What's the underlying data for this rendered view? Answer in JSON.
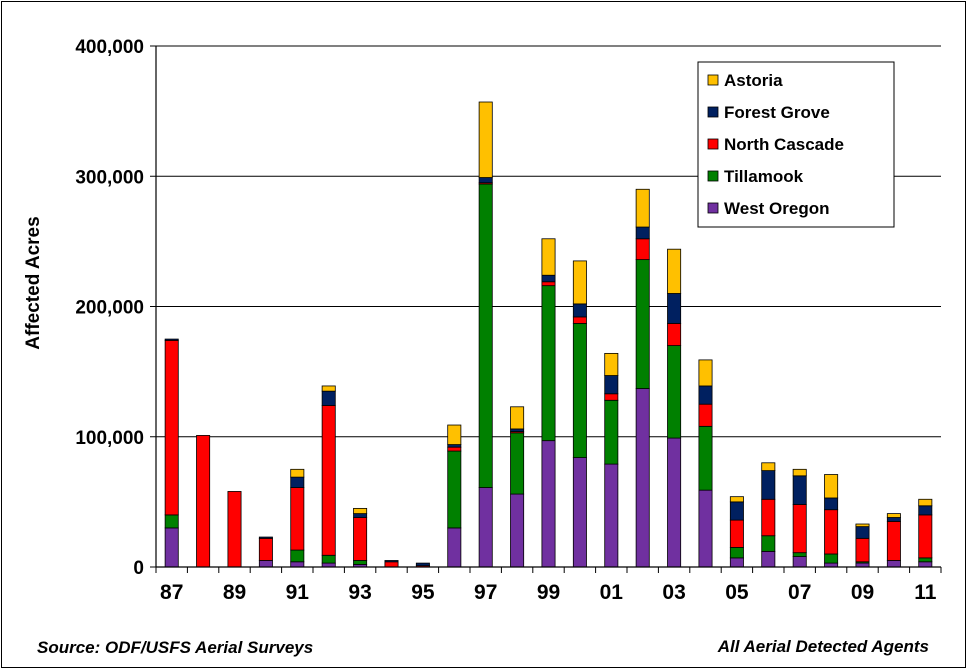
{
  "chart_data": {
    "type": "bar",
    "stacked": true,
    "ylabel": "Affected Acres",
    "ylim": [
      0,
      400000
    ],
    "yticks": [
      0,
      100000,
      200000,
      300000,
      400000
    ],
    "ytick_labels": [
      "0",
      "100,000",
      "200,000",
      "300,000",
      "400,000"
    ],
    "categories": [
      "87",
      "88",
      "89",
      "90",
      "91",
      "92",
      "93",
      "94",
      "95",
      "96",
      "97",
      "98",
      "99",
      "00",
      "01",
      "02",
      "03",
      "04",
      "05",
      "06",
      "07",
      "08",
      "09",
      "10",
      "11"
    ],
    "xtick_labels": [
      "87",
      "",
      "89",
      "",
      "91",
      "",
      "93",
      "",
      "95",
      "",
      "97",
      "",
      "99",
      "",
      "01",
      "",
      "03",
      "",
      "05",
      "",
      "07",
      "",
      "09",
      "",
      "11"
    ],
    "grid": true,
    "legend_position": "top-right",
    "series": [
      {
        "name": "West Oregon",
        "color": "#7030A0",
        "values": [
          30000,
          0,
          0,
          5000,
          4000,
          3000,
          2000,
          0,
          0,
          30000,
          61000,
          56000,
          97000,
          84000,
          79000,
          137000,
          99000,
          59000,
          7000,
          12000,
          8000,
          3000,
          3000,
          5000,
          4000
        ]
      },
      {
        "name": "Tillamook",
        "color": "#008000",
        "values": [
          10000,
          0,
          0,
          0,
          9000,
          6000,
          3000,
          0,
          0,
          59000,
          233000,
          47000,
          119000,
          103000,
          49000,
          99000,
          71000,
          49000,
          8000,
          12000,
          3000,
          7000,
          1000,
          0,
          3000
        ]
      },
      {
        "name": "North Cascade",
        "color": "#FF0000",
        "values": [
          134000,
          101000,
          58000,
          17000,
          48000,
          115000,
          33000,
          4000,
          1000,
          3000,
          1000,
          1000,
          3000,
          5000,
          5000,
          16000,
          17000,
          17000,
          21000,
          28000,
          37000,
          34000,
          18000,
          30000,
          33000
        ]
      },
      {
        "name": "Forest Grove",
        "color": "#002060",
        "values": [
          1000,
          0,
          0,
          1000,
          8000,
          11000,
          3000,
          1000,
          2000,
          2000,
          4000,
          2000,
          5000,
          10000,
          14000,
          9000,
          23000,
          14000,
          14000,
          22000,
          22000,
          9000,
          9000,
          3000,
          7000
        ]
      },
      {
        "name": "Astoria",
        "color": "#FFC000",
        "values": [
          0,
          0,
          0,
          0,
          6000,
          4000,
          4000,
          0,
          0,
          15000,
          58000,
          17000,
          28000,
          33000,
          17000,
          29000,
          34000,
          20000,
          4000,
          6000,
          5000,
          18000,
          2000,
          3000,
          5000
        ]
      }
    ]
  },
  "footer": {
    "source": "Source: ODF/USFS Aerial Surveys",
    "note": "All Aerial Detected Agents"
  }
}
